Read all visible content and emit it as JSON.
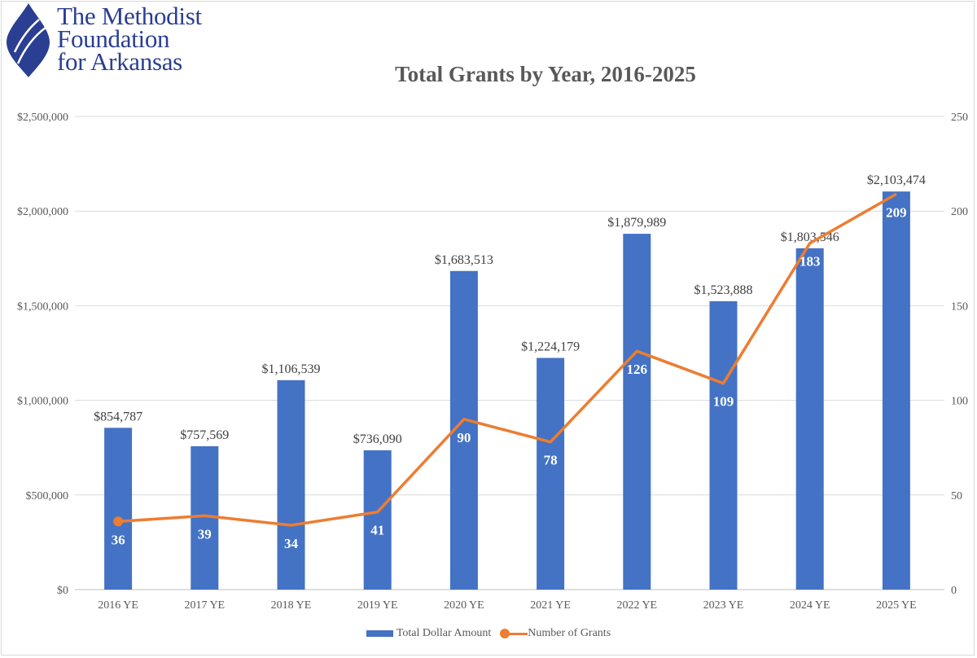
{
  "logo": {
    "lines": [
      "The Methodist",
      "Foundation",
      "for Arkansas"
    ],
    "color": "#2a3e92"
  },
  "chart_data": {
    "type": "bar+line",
    "title": "Total Grants by Year, 2016-2025",
    "categories": [
      "2016 YE",
      "2017 YE",
      "2018 YE",
      "2019 YE",
      "2020 YE",
      "2021 YE",
      "2022 YE",
      "2023 YE",
      "2024 YE",
      "2025 YE"
    ],
    "series": [
      {
        "name": "Total Dollar Amount",
        "type": "bar",
        "axis": "left",
        "color": "#4472c4",
        "values": [
          854787,
          757569,
          1106539,
          736090,
          1683513,
          1224179,
          1879989,
          1523888,
          1803546,
          2103474
        ],
        "labels": [
          "$854,787",
          "$757,569",
          "$1,106,539",
          "$736,090",
          "$1,683,513",
          "$1,224,179",
          "$1,879,989",
          "$1,523,888",
          "$1,803,546",
          "$2,103,474"
        ]
      },
      {
        "name": "Number of Grants",
        "type": "line",
        "axis": "right",
        "color": "#ed7d31",
        "values": [
          36,
          39,
          34,
          41,
          90,
          78,
          126,
          109,
          183,
          209
        ]
      }
    ],
    "left_axis": {
      "range": [
        0,
        2500000
      ],
      "ticks": [
        "$0",
        "$500,000",
        "$1,000,000",
        "$1,500,000",
        "$2,000,000",
        "$2,500,000"
      ]
    },
    "right_axis": {
      "range": [
        0,
        250
      ],
      "ticks": [
        "0",
        "50",
        "100",
        "150",
        "200",
        "250"
      ]
    },
    "grid": true,
    "legend": "bottom"
  }
}
